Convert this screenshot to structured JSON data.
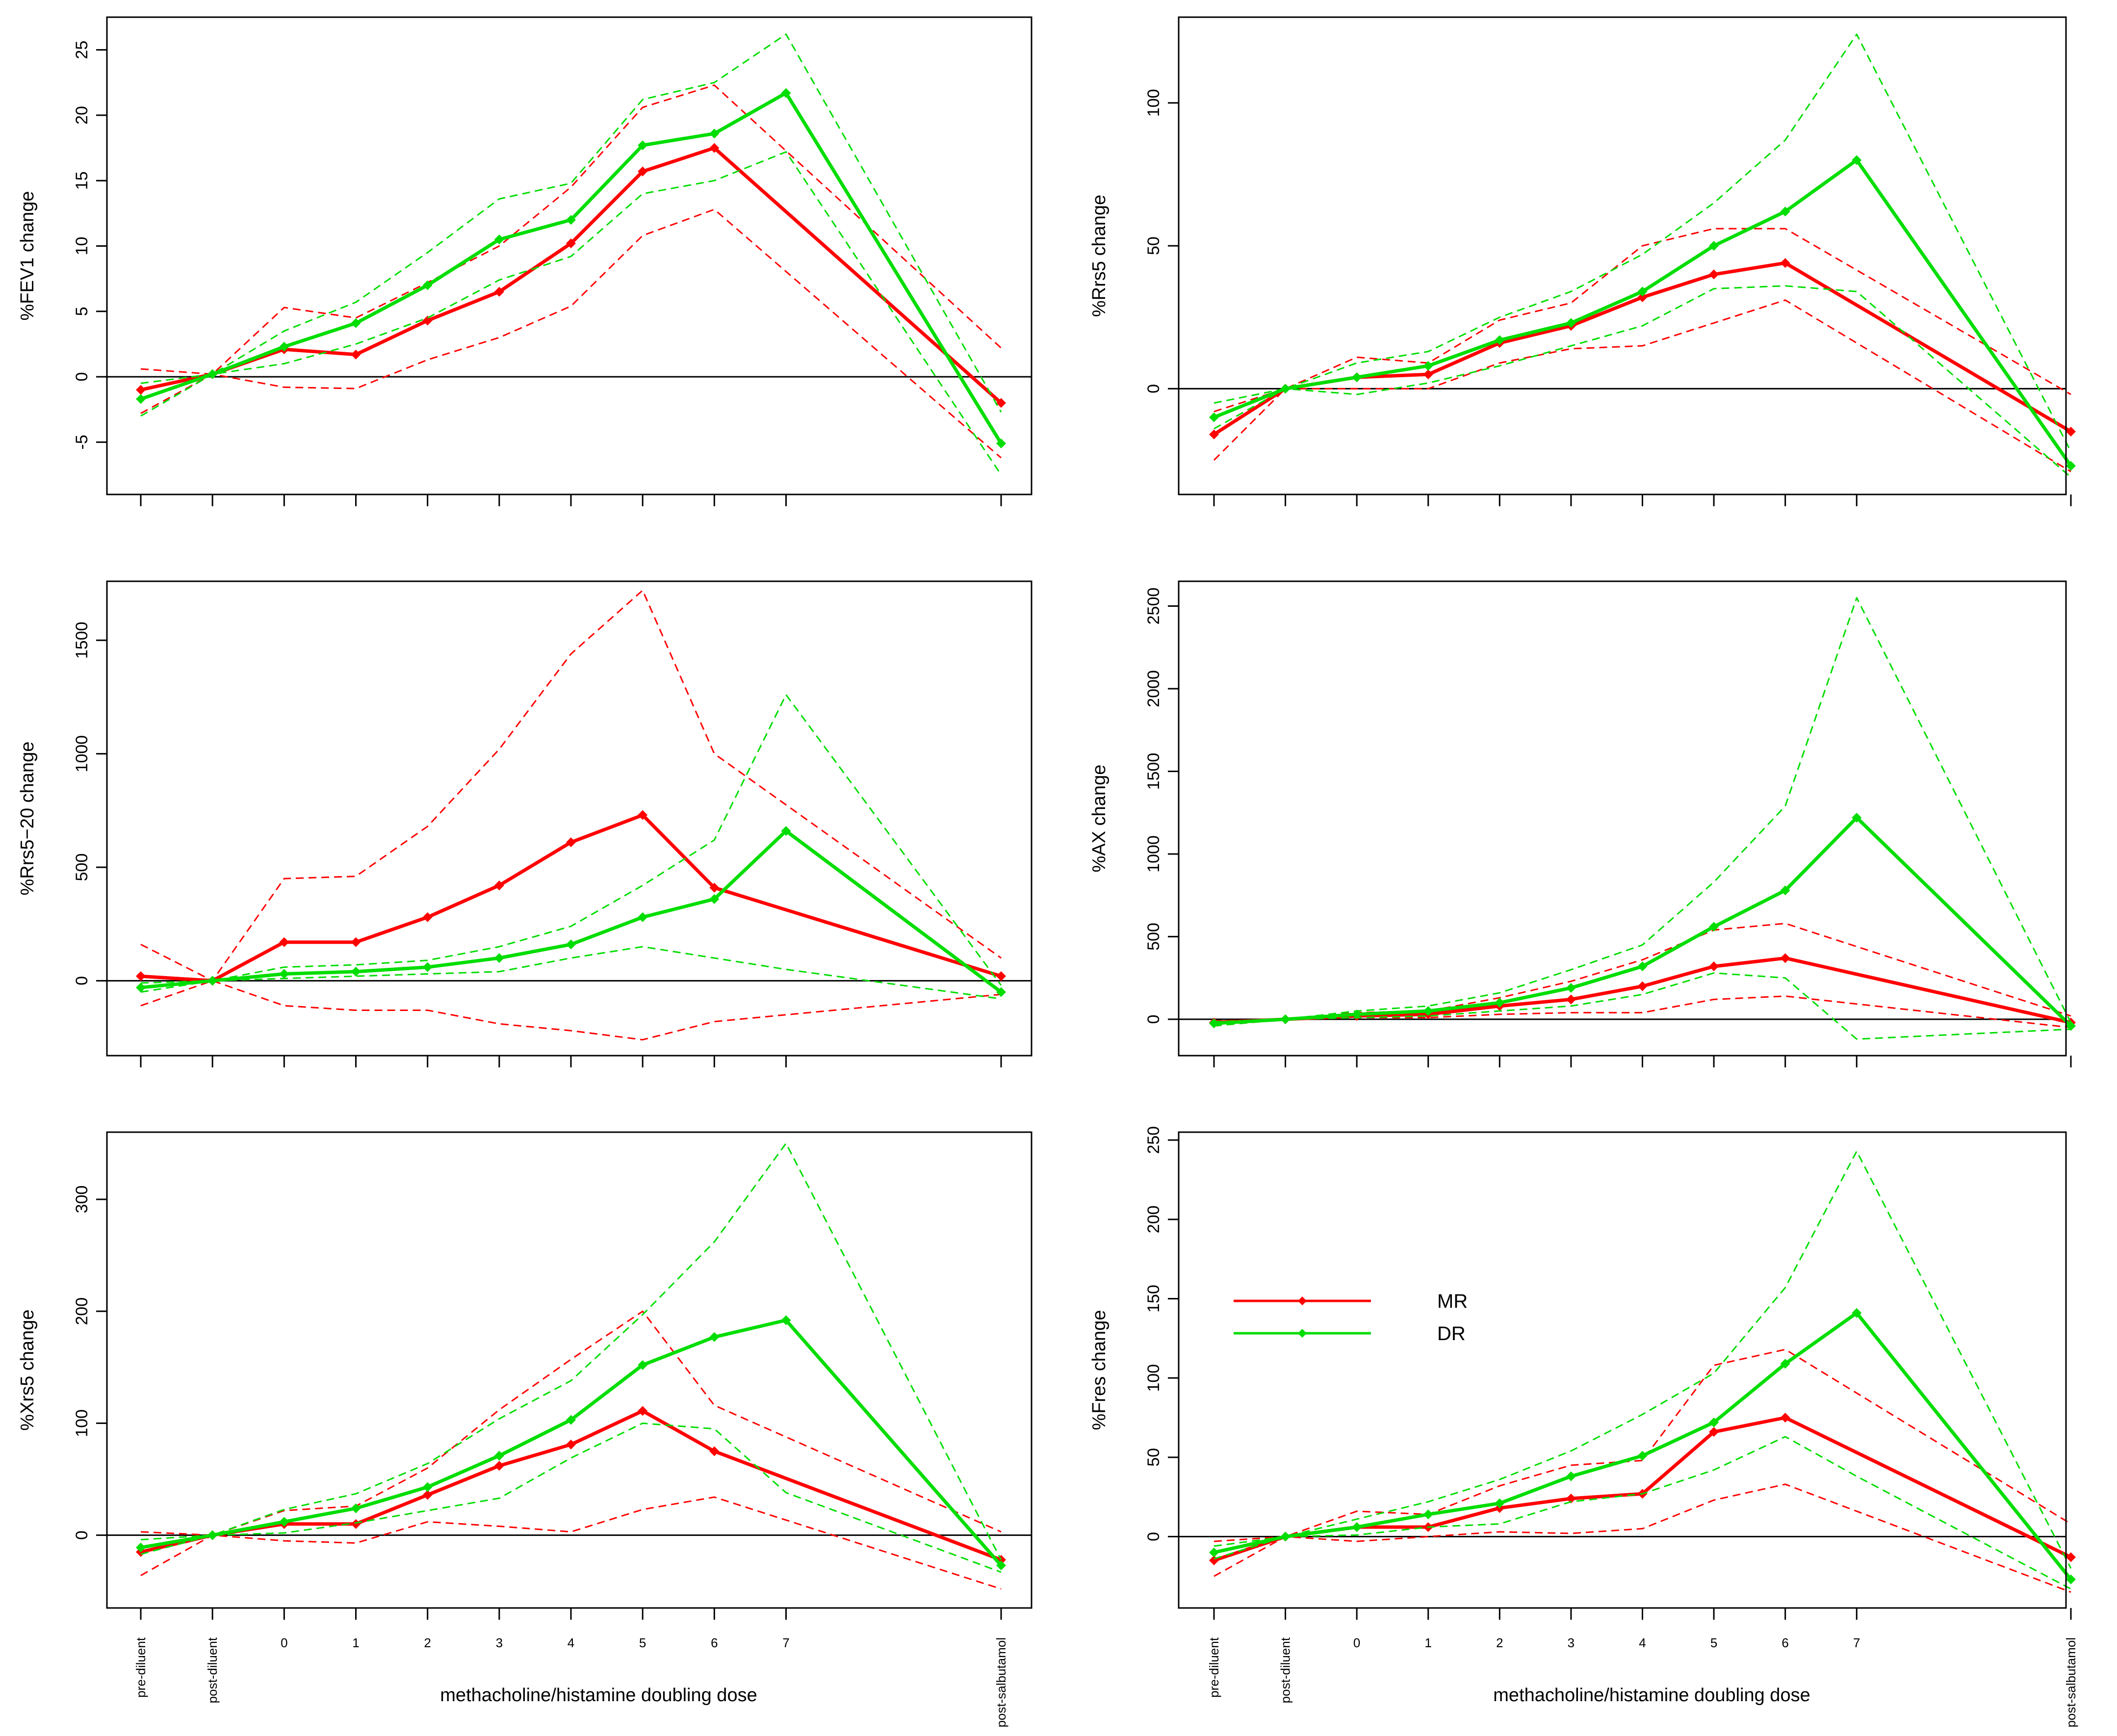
{
  "figure": {
    "xlabel": "methacholine/histamine doubling dose",
    "categories": [
      "pre-diluent",
      "post-diluent",
      "0",
      "1",
      "2",
      "3",
      "4",
      "5",
      "6",
      "7",
      "post-salbutamol"
    ],
    "legend": [
      {
        "label": "MR",
        "color": "#ff0000"
      },
      {
        "label": "DR",
        "color": "#00dd00"
      }
    ]
  },
  "chart_data": [
    {
      "type": "line",
      "ylabel": "%FEV1 change",
      "ylim": [
        -9,
        27.5
      ],
      "yticks": [
        -5,
        0,
        5,
        10,
        15,
        20,
        25
      ],
      "x_index": [
        0,
        1,
        2,
        3,
        4,
        5,
        6,
        7,
        8,
        9,
        12
      ],
      "series": [
        {
          "name": "MR",
          "color": "#ff0000",
          "kind": "mean",
          "values": [
            -1,
            0.2,
            2.1,
            1.7,
            4.3,
            6.5,
            10.2,
            15.7,
            17.5,
            null,
            -2
          ]
        },
        {
          "name": "MR",
          "color": "#ff0000",
          "kind": "upper",
          "values": [
            0.6,
            0.2,
            5.3,
            4.5,
            7.2,
            10,
            14.5,
            20.6,
            22.3,
            null,
            2.2
          ]
        },
        {
          "name": "MR",
          "color": "#ff0000",
          "kind": "lower",
          "values": [
            -2.8,
            0.2,
            -0.8,
            -0.9,
            1.3,
            3,
            5.4,
            10.8,
            12.8,
            null,
            -6.2
          ]
        },
        {
          "name": "DR",
          "color": "#00dd00",
          "kind": "mean",
          "values": [
            -1.7,
            0.2,
            2.3,
            4.1,
            7,
            10.5,
            12,
            17.7,
            18.6,
            21.7,
            -5.1
          ]
        },
        {
          "name": "DR",
          "color": "#00dd00",
          "kind": "upper",
          "values": [
            -0.5,
            0.2,
            3.5,
            5.7,
            9.5,
            13.6,
            14.8,
            21.2,
            22.5,
            26.2,
            -2.7
          ]
        },
        {
          "name": "DR",
          "color": "#00dd00",
          "kind": "lower",
          "values": [
            -3,
            0.2,
            1,
            2.5,
            4.5,
            7.4,
            9.2,
            14,
            15,
            17.2,
            -7.5
          ]
        }
      ]
    },
    {
      "type": "line",
      "ylabel": "%Rrs5 change",
      "ylim": [
        -37,
        130
      ],
      "yticks": [
        0,
        50,
        100
      ],
      "x_index": [
        0,
        1,
        2,
        3,
        4,
        5,
        6,
        7,
        8,
        9,
        12
      ],
      "series": [
        {
          "name": "MR",
          "color": "#ff0000",
          "kind": "mean",
          "values": [
            -16,
            0,
            4,
            5,
            16,
            22,
            32,
            40,
            44,
            null,
            -15
          ]
        },
        {
          "name": "MR",
          "color": "#ff0000",
          "kind": "upper",
          "values": [
            -8,
            0,
            11,
            9,
            24,
            30,
            50,
            56,
            56,
            null,
            -2
          ]
        },
        {
          "name": "MR",
          "color": "#ff0000",
          "kind": "lower",
          "values": [
            -25,
            0,
            0,
            0,
            9,
            14,
            15,
            23,
            31,
            null,
            -29
          ]
        },
        {
          "name": "DR",
          "color": "#00dd00",
          "kind": "mean",
          "values": [
            -10,
            0,
            4,
            8,
            17,
            23,
            34,
            50,
            62,
            80,
            -27
          ]
        },
        {
          "name": "DR",
          "color": "#00dd00",
          "kind": "upper",
          "values": [
            -5,
            0,
            9,
            13,
            25,
            34,
            47,
            65,
            87,
            124,
            -22
          ]
        },
        {
          "name": "DR",
          "color": "#00dd00",
          "kind": "lower",
          "values": [
            -14,
            0,
            -2,
            2,
            8,
            15,
            22,
            35,
            36,
            34,
            -31
          ]
        }
      ]
    },
    {
      "type": "line",
      "ylabel": "%Rrs5−20 change",
      "ylim": [
        -330,
        1760
      ],
      "yticks": [
        0,
        500,
        1000,
        1500
      ],
      "x_index": [
        0,
        1,
        2,
        3,
        4,
        5,
        6,
        7,
        8,
        9,
        12
      ],
      "series": [
        {
          "name": "MR",
          "color": "#ff0000",
          "kind": "mean",
          "values": [
            20,
            0,
            170,
            170,
            280,
            420,
            610,
            730,
            410,
            null,
            20
          ]
        },
        {
          "name": "MR",
          "color": "#ff0000",
          "kind": "upper",
          "values": [
            160,
            0,
            450,
            460,
            680,
            1020,
            1440,
            1720,
            1000,
            null,
            100
          ]
        },
        {
          "name": "MR",
          "color": "#ff0000",
          "kind": "lower",
          "values": [
            -110,
            0,
            -110,
            -130,
            -130,
            -190,
            -220,
            -260,
            -180,
            null,
            -60
          ]
        },
        {
          "name": "DR",
          "color": "#00dd00",
          "kind": "mean",
          "values": [
            -30,
            0,
            30,
            40,
            60,
            100,
            160,
            280,
            360,
            660,
            -50
          ]
        },
        {
          "name": "DR",
          "color": "#00dd00",
          "kind": "upper",
          "values": [
            -10,
            0,
            60,
            70,
            90,
            150,
            240,
            420,
            620,
            1260,
            -20
          ]
        },
        {
          "name": "DR",
          "color": "#00dd00",
          "kind": "lower",
          "values": [
            -50,
            0,
            10,
            20,
            30,
            40,
            100,
            150,
            100,
            50,
            -80
          ]
        }
      ]
    },
    {
      "type": "line",
      "ylabel": "%AX  change",
      "ylim": [
        -220,
        2650
      ],
      "yticks": [
        0,
        500,
        1000,
        1500,
        2000,
        2500
      ],
      "x_index": [
        0,
        1,
        2,
        3,
        4,
        5,
        6,
        7,
        8,
        9,
        12
      ],
      "series": [
        {
          "name": "MR",
          "color": "#ff0000",
          "kind": "mean",
          "values": [
            -20,
            0,
            20,
            30,
            80,
            120,
            200,
            320,
            370,
            null,
            -20
          ]
        },
        {
          "name": "MR",
          "color": "#ff0000",
          "kind": "upper",
          "values": [
            -10,
            0,
            40,
            50,
            130,
            230,
            360,
            540,
            580,
            null,
            20
          ]
        },
        {
          "name": "MR",
          "color": "#ff0000",
          "kind": "lower",
          "values": [
            -40,
            0,
            10,
            10,
            30,
            40,
            40,
            120,
            140,
            null,
            -50
          ]
        },
        {
          "name": "DR",
          "color": "#00dd00",
          "kind": "mean",
          "values": [
            -25,
            0,
            30,
            50,
            100,
            190,
            320,
            560,
            780,
            1220,
            -40
          ]
        },
        {
          "name": "DR",
          "color": "#00dd00",
          "kind": "upper",
          "values": [
            -15,
            0,
            50,
            80,
            160,
            300,
            450,
            830,
            1290,
            2550,
            -20
          ]
        },
        {
          "name": "DR",
          "color": "#00dd00",
          "kind": "lower",
          "values": [
            -40,
            0,
            10,
            20,
            50,
            80,
            150,
            280,
            250,
            -120,
            -60
          ]
        }
      ]
    },
    {
      "type": "line",
      "ylabel": "%Xrs5 change",
      "ylim": [
        -65,
        360
      ],
      "yticks": [
        0,
        100,
        200,
        300
      ],
      "x_index": [
        0,
        1,
        2,
        3,
        4,
        5,
        6,
        7,
        8,
        9,
        12
      ],
      "series": [
        {
          "name": "MR",
          "color": "#ff0000",
          "kind": "mean",
          "values": [
            -15,
            0,
            10,
            10,
            36,
            62,
            81,
            111,
            75,
            null,
            -22
          ]
        },
        {
          "name": "MR",
          "color": "#ff0000",
          "kind": "upper",
          "values": [
            3,
            0,
            22,
            26,
            60,
            112,
            157,
            200,
            116,
            null,
            3
          ]
        },
        {
          "name": "MR",
          "color": "#ff0000",
          "kind": "lower",
          "values": [
            -36,
            0,
            -5,
            -7,
            12,
            8,
            3,
            23,
            34,
            null,
            -48
          ]
        },
        {
          "name": "DR",
          "color": "#00dd00",
          "kind": "mean",
          "values": [
            -11,
            0,
            12,
            24,
            43,
            71,
            103,
            152,
            177,
            192,
            -27
          ]
        },
        {
          "name": "DR",
          "color": "#00dd00",
          "kind": "upper",
          "values": [
            -4,
            0,
            23,
            37,
            64,
            104,
            138,
            197,
            262,
            350,
            -22
          ]
        },
        {
          "name": "DR",
          "color": "#00dd00",
          "kind": "lower",
          "values": [
            -17,
            0,
            2,
            11,
            22,
            33,
            69,
            100,
            95,
            38,
            -33
          ]
        }
      ]
    },
    {
      "type": "line",
      "ylabel": "%Fres change",
      "ylim": [
        -45,
        255
      ],
      "yticks": [
        0,
        50,
        100,
        150,
        200,
        250
      ],
      "legend_position": "center-left",
      "x_index": [
        0,
        1,
        2,
        3,
        4,
        5,
        6,
        7,
        8,
        9,
        12
      ],
      "series": [
        {
          "name": "MR",
          "color": "#ff0000",
          "kind": "mean",
          "values": [
            -15,
            0,
            6,
            6,
            18,
            24,
            27,
            66,
            75,
            null,
            -13
          ]
        },
        {
          "name": "MR",
          "color": "#ff0000",
          "kind": "upper",
          "values": [
            -3,
            0,
            16,
            14,
            32,
            45,
            48,
            108,
            118,
            null,
            8
          ]
        },
        {
          "name": "MR",
          "color": "#ff0000",
          "kind": "lower",
          "values": [
            -25,
            0,
            -3,
            0,
            3,
            2,
            5,
            23,
            33,
            null,
            -35
          ]
        },
        {
          "name": "DR",
          "color": "#00dd00",
          "kind": "mean",
          "values": [
            -10,
            0,
            6,
            14,
            21,
            38,
            51,
            72,
            109,
            141,
            -27
          ]
        },
        {
          "name": "DR",
          "color": "#00dd00",
          "kind": "upper",
          "values": [
            -6,
            0,
            11,
            22,
            36,
            54,
            77,
            103,
            157,
            243,
            -20
          ]
        },
        {
          "name": "DR",
          "color": "#00dd00",
          "kind": "lower",
          "values": [
            -14,
            0,
            1,
            6,
            8,
            22,
            27,
            42,
            63,
            38,
            -33
          ]
        }
      ]
    }
  ]
}
